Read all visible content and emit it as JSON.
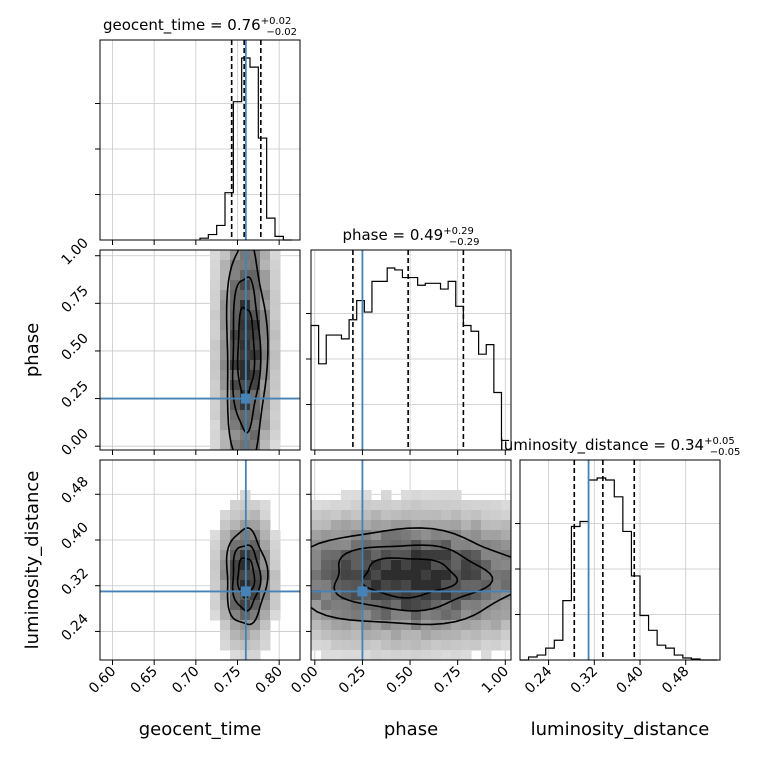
{
  "chart_data": {
    "type": "corner",
    "parameters": [
      {
        "key": "geocent_time",
        "label": "geocent_time",
        "range": [
          0.585,
          0.825
        ],
        "ticks": [
          0.6,
          0.65,
          0.7,
          0.75,
          0.8
        ],
        "tick_labels": [
          "0.60",
          "0.65",
          "0.70",
          "0.75",
          "0.80"
        ],
        "truth": 0.76
      },
      {
        "key": "phase",
        "label": "phase",
        "range": [
          -0.02,
          1.03
        ],
        "ticks": [
          0.0,
          0.25,
          0.5,
          0.75,
          1.0
        ],
        "tick_labels": [
          "0.00",
          "0.25",
          "0.50",
          "0.75",
          "1.00"
        ],
        "truth": 0.25
      },
      {
        "key": "luminosity_distance",
        "label": "luminosity_distance",
        "range": [
          0.19,
          0.54
        ],
        "ticks": [
          0.24,
          0.32,
          0.4,
          0.48
        ],
        "tick_labels": [
          "0.24",
          "0.32",
          "0.40",
          "0.48"
        ],
        "truth": 0.31
      }
    ],
    "titles": [
      {
        "text": "geocent_time = 0.76",
        "plus": "+0.02",
        "minus": "−0.02"
      },
      {
        "text": "phase = 0.49",
        "plus": "+0.29",
        "minus": "−0.29"
      },
      {
        "text": "luminosity_distance = 0.34",
        "plus": "+0.05",
        "minus": "−0.05"
      }
    ],
    "quantiles": [
      [
        0.743,
        0.758,
        0.778
      ],
      [
        0.2,
        0.49,
        0.78
      ],
      [
        0.285,
        0.335,
        0.39
      ]
    ],
    "histograms": [
      {
        "bin_edges": [
          0.705,
          0.715,
          0.725,
          0.735,
          0.745,
          0.755,
          0.765,
          0.775,
          0.785,
          0.795,
          0.805,
          0.815
        ],
        "counts": [
          1,
          3,
          8,
          26,
          76,
          100,
          95,
          56,
          12,
          2,
          0
        ]
      },
      {
        "bin_edges": [
          -0.02,
          0.02,
          0.06,
          0.1,
          0.14,
          0.18,
          0.22,
          0.26,
          0.3,
          0.34,
          0.38,
          0.42,
          0.46,
          0.5,
          0.54,
          0.58,
          0.62,
          0.66,
          0.7,
          0.74,
          0.78,
          0.82,
          0.86,
          0.9,
          0.94,
          0.98,
          1.02
        ],
        "counts": [
          65,
          45,
          60,
          60,
          58,
          68,
          78,
          72,
          88,
          88,
          95,
          94,
          90,
          90,
          86,
          87,
          87,
          84,
          88,
          75,
          65,
          62,
          50,
          55,
          30,
          5
        ]
      },
      {
        "bin_edges": [
          0.19,
          0.205,
          0.22,
          0.235,
          0.25,
          0.265,
          0.28,
          0.295,
          0.31,
          0.325,
          0.34,
          0.355,
          0.37,
          0.385,
          0.4,
          0.415,
          0.43,
          0.445,
          0.46,
          0.475,
          0.49,
          0.505,
          0.52,
          0.535
        ],
        "counts": [
          0,
          3,
          5,
          12,
          20,
          60,
          135,
          140,
          182,
          184,
          182,
          165,
          130,
          85,
          45,
          30,
          15,
          12,
          5,
          2,
          1,
          0,
          0
        ]
      }
    ],
    "gaussians": [
      {
        "x": 0.76,
        "sx": 0.011
      },
      {
        "x": 0.49,
        "sx": 0.27
      },
      {
        "x": 0.335,
        "sx": 0.038
      }
    ],
    "grid": true
  }
}
